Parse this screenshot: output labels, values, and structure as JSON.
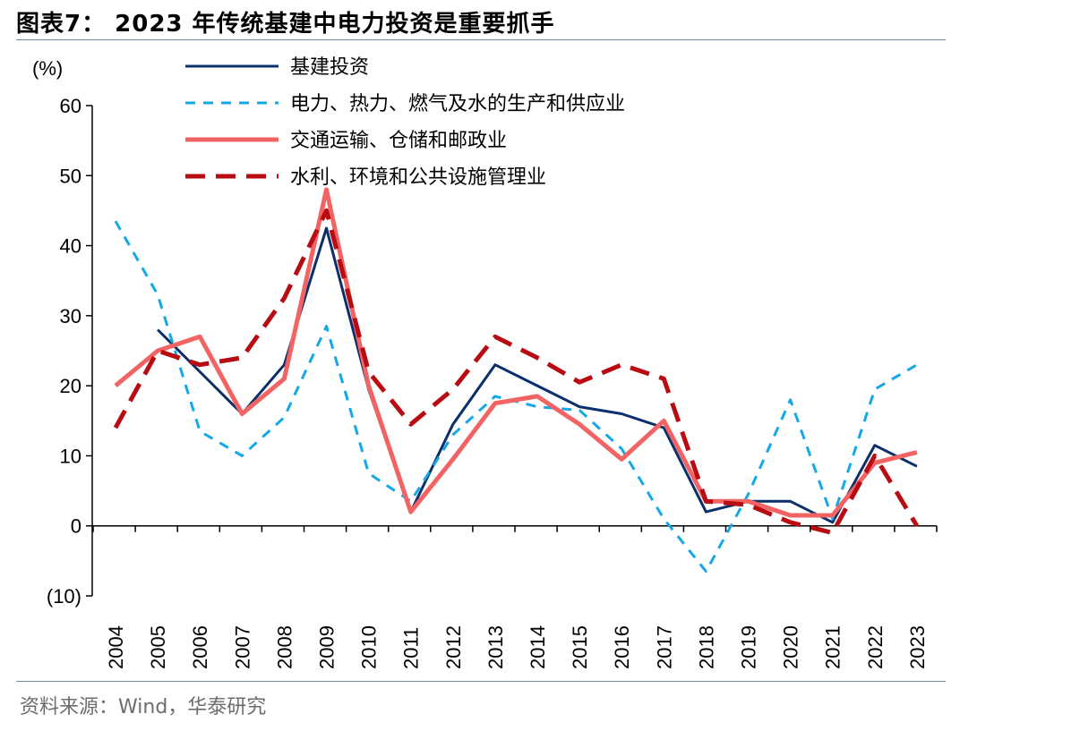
{
  "header": {
    "title": "图表7： 2023 年传统基建中电力投资是重要抓手"
  },
  "footer": {
    "source": "资料来源：Wind，华泰研究"
  },
  "chart_data": {
    "type": "line",
    "unit_label": "(%)",
    "ylim": [
      -10,
      60
    ],
    "yticks": [
      -10,
      0,
      10,
      20,
      30,
      40,
      50,
      60
    ],
    "ytick_labels": [
      "(10)",
      "0",
      "10",
      "20",
      "30",
      "40",
      "50",
      "60"
    ],
    "categories": [
      "2004",
      "2005",
      "2006",
      "2007",
      "2008",
      "2009",
      "2010",
      "2011",
      "2012",
      "2013",
      "2014",
      "2015",
      "2016",
      "2017",
      "2018",
      "2019",
      "2020",
      "2021",
      "2022",
      "2023"
    ],
    "legend_position": "top-center",
    "grid": false,
    "series": [
      {
        "name": "基建投资",
        "color": "#0b2f6b",
        "style": "solid",
        "width": 3,
        "values": [
          null,
          28.0,
          22.0,
          16.0,
          23.0,
          42.5,
          19.5,
          2.0,
          14.5,
          23.0,
          20.0,
          17.0,
          16.0,
          14.0,
          2.0,
          3.5,
          3.5,
          0.5,
          11.5,
          8.5
        ]
      },
      {
        "name": "电力、热力、燃气及水的生产和供应业",
        "color": "#15a8e8",
        "style": "dash",
        "width": 3,
        "values": [
          43.5,
          33.0,
          13.5,
          10.0,
          15.5,
          28.5,
          7.5,
          3.5,
          13.0,
          18.5,
          17.0,
          16.5,
          11.0,
          1.0,
          -6.5,
          4.5,
          18.0,
          1.0,
          19.5,
          23.0
        ]
      },
      {
        "name": "交通运输、仓储和邮政业",
        "color": "#f26464",
        "style": "solid",
        "width": 5,
        "values": [
          20.0,
          25.0,
          27.0,
          16.0,
          21.0,
          48.0,
          20.0,
          2.0,
          9.5,
          17.5,
          18.5,
          14.5,
          9.5,
          15.0,
          3.5,
          3.5,
          1.5,
          1.5,
          9.0,
          10.5
        ]
      },
      {
        "name": "水利、环境和公共设施管理业",
        "color": "#b80b12",
        "style": "bigdash",
        "width": 5,
        "values": [
          14.0,
          25.0,
          23.0,
          24.0,
          32.5,
          45.0,
          22.0,
          14.5,
          19.5,
          27.0,
          24.0,
          20.5,
          23.0,
          21.0,
          3.5,
          3.0,
          0.5,
          -1.0,
          10.0,
          0.0
        ]
      }
    ]
  }
}
